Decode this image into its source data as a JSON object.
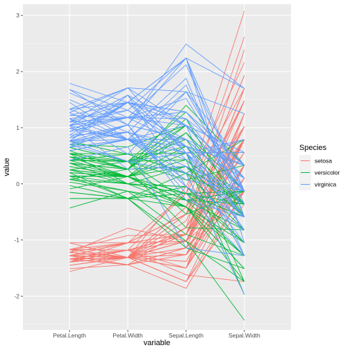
{
  "chart_data": {
    "type": "line",
    "subtype": "parallel-coordinates",
    "title": "",
    "xlabel": "variable",
    "ylabel": "value",
    "categories": [
      "Petal.Length",
      "Petal.Width",
      "Sepal.Length",
      "Sepal.Width"
    ],
    "ylim": [
      -2.6,
      3.2
    ],
    "yticks": [
      -2,
      -1,
      0,
      1,
      2,
      3
    ],
    "grid": true,
    "legend": {
      "title": "Species",
      "position": "right",
      "entries": [
        {
          "name": "setosa",
          "color": "#F8766D"
        },
        {
          "name": "versicolor",
          "color": "#00BA38"
        },
        {
          "name": "virginica",
          "color": "#619CFF"
        }
      ]
    },
    "series": [
      {
        "name": "setosa",
        "color": "#F8766D",
        "lines": [
          [
            -1.34,
            -1.31,
            -0.9,
            1.02
          ],
          [
            -1.34,
            -1.31,
            -1.14,
            -0.13
          ],
          [
            -1.39,
            -1.31,
            -1.38,
            0.33
          ],
          [
            -1.28,
            -1.31,
            -1.5,
            0.1
          ],
          [
            -1.34,
            -1.31,
            -1.02,
            1.25
          ],
          [
            -1.17,
            -1.05,
            -0.54,
            1.93
          ],
          [
            -1.34,
            -1.18,
            -1.5,
            0.79
          ],
          [
            -1.28,
            -1.31,
            -1.02,
            0.79
          ],
          [
            -1.34,
            -1.31,
            -1.74,
            -0.36
          ],
          [
            -1.28,
            -1.44,
            -1.14,
            0.1
          ],
          [
            -1.28,
            -1.31,
            -0.54,
            1.48
          ],
          [
            -1.22,
            -1.31,
            -1.26,
            0.79
          ],
          [
            -1.34,
            -1.44,
            -1.26,
            -0.13
          ],
          [
            -1.51,
            -1.44,
            -1.86,
            -0.13
          ],
          [
            -1.45,
            -1.31,
            -0.05,
            2.16
          ],
          [
            -1.28,
            -1.05,
            -0.17,
            3.08
          ],
          [
            -1.39,
            -1.05,
            -0.54,
            1.93
          ],
          [
            -1.34,
            -1.18,
            -0.9,
            1.02
          ],
          [
            -1.17,
            -1.18,
            -0.17,
            1.7
          ],
          [
            -1.28,
            -1.18,
            -0.9,
            1.7
          ],
          [
            -1.17,
            -1.31,
            -0.54,
            0.79
          ],
          [
            -1.28,
            -1.05,
            -0.9,
            1.48
          ],
          [
            -1.56,
            -1.31,
            -1.5,
            1.25
          ],
          [
            -1.17,
            -0.92,
            -0.9,
            0.56
          ],
          [
            -1.05,
            -1.31,
            -1.26,
            0.79
          ],
          [
            -1.22,
            -1.31,
            -1.02,
            -0.13
          ],
          [
            -1.22,
            -1.05,
            -1.02,
            0.79
          ],
          [
            -1.28,
            -1.31,
            -0.78,
            1.02
          ],
          [
            -1.34,
            -1.31,
            -0.78,
            0.79
          ],
          [
            -1.22,
            -1.31,
            -1.38,
            0.33
          ],
          [
            -1.22,
            -1.31,
            -1.26,
            0.1
          ],
          [
            -1.28,
            -1.05,
            -0.54,
            0.79
          ],
          [
            -1.28,
            -1.44,
            -0.78,
            2.39
          ],
          [
            -1.34,
            -1.31,
            -0.41,
            2.62
          ],
          [
            -1.28,
            -1.31,
            -1.14,
            0.1
          ],
          [
            -1.45,
            -1.31,
            -1.02,
            0.33
          ],
          [
            -1.39,
            -1.31,
            -0.41,
            1.02
          ],
          [
            -1.34,
            -1.44,
            -1.14,
            1.25
          ],
          [
            -1.39,
            -1.31,
            -1.74,
            -0.13
          ],
          [
            -1.28,
            -1.31,
            -0.9,
            0.79
          ],
          [
            -1.39,
            -1.18,
            -1.02,
            1.02
          ],
          [
            -1.39,
            -1.18,
            -1.62,
            -1.74
          ],
          [
            -1.39,
            -1.31,
            -1.74,
            0.33
          ],
          [
            -1.22,
            -0.79,
            -1.02,
            1.02
          ],
          [
            -1.05,
            -1.05,
            -0.9,
            1.7
          ],
          [
            -1.34,
            -1.18,
            -1.26,
            -0.13
          ],
          [
            -1.22,
            -1.31,
            -0.9,
            1.7
          ],
          [
            -1.34,
            -1.31,
            -1.5,
            0.33
          ],
          [
            -1.28,
            -1.31,
            -0.66,
            1.48
          ],
          [
            -1.34,
            -1.31,
            -1.02,
            0.56
          ]
        ]
      },
      {
        "name": "versicolor",
        "color": "#00BA38",
        "lines": [
          [
            0.54,
            0.26,
            1.4,
            0.33
          ],
          [
            0.42,
            0.4,
            0.67,
            0.33
          ],
          [
            0.65,
            0.4,
            1.28,
            0.1
          ],
          [
            0.14,
            0.13,
            -0.41,
            -1.74
          ],
          [
            0.48,
            0.4,
            0.79,
            -0.59
          ],
          [
            0.42,
            0.13,
            -0.17,
            -0.59
          ],
          [
            0.54,
            0.53,
            0.55,
            0.56
          ],
          [
            -0.26,
            -0.26,
            -1.14,
            -1.51
          ],
          [
            0.48,
            0.13,
            0.91,
            -0.36
          ],
          [
            0.08,
            0.26,
            -0.78,
            -0.82
          ],
          [
            -0.15,
            -0.26,
            -1.02,
            -2.43
          ],
          [
            0.25,
            0.4,
            0.07,
            -0.13
          ],
          [
            0.14,
            -0.26,
            0.19,
            -1.97
          ],
          [
            0.54,
            0.26,
            0.31,
            -0.36
          ],
          [
            -0.09,
            0.13,
            -0.29,
            -0.36
          ],
          [
            0.37,
            0.26,
            1.04,
            0.1
          ],
          [
            0.42,
            0.4,
            -0.29,
            -0.13
          ],
          [
            0.2,
            -0.26,
            -0.05,
            -0.82
          ],
          [
            0.42,
            0.4,
            0.43,
            -1.97
          ],
          [
            0.08,
            -0.13,
            -0.29,
            -1.28
          ],
          [
            0.59,
            0.79,
            0.07,
            0.33
          ],
          [
            0.14,
            0.13,
            0.31,
            -0.59
          ],
          [
            0.65,
            0.4,
            0.55,
            -1.28
          ],
          [
            0.54,
            0.0,
            0.31,
            -0.59
          ],
          [
            0.31,
            0.13,
            0.67,
            -0.36
          ],
          [
            0.37,
            0.26,
            0.91,
            -0.13
          ],
          [
            0.59,
            0.26,
            1.16,
            -0.59
          ],
          [
            0.7,
            0.66,
            1.04,
            -0.13
          ],
          [
            0.42,
            0.4,
            0.19,
            -0.36
          ],
          [
            -0.15,
            -0.26,
            -0.17,
            -1.05
          ],
          [
            0.03,
            -0.13,
            -0.41,
            -1.51
          ],
          [
            -0.03,
            -0.26,
            -0.41,
            -1.51
          ],
          [
            0.08,
            0.0,
            -0.05,
            -0.82
          ],
          [
            0.76,
            0.53,
            0.19,
            -0.82
          ],
          [
            0.42,
            0.4,
            -0.54,
            -0.13
          ],
          [
            0.42,
            0.53,
            0.19,
            0.79
          ],
          [
            0.54,
            0.4,
            1.04,
            0.1
          ],
          [
            0.37,
            0.13,
            0.55,
            -1.74
          ],
          [
            0.2,
            0.13,
            -0.29,
            -0.13
          ],
          [
            0.14,
            0.13,
            -0.41,
            -1.28
          ],
          [
            0.37,
            0.0,
            -0.41,
            -1.05
          ],
          [
            0.48,
            0.26,
            0.31,
            -0.13
          ],
          [
            0.14,
            0.0,
            -0.05,
            -1.05
          ],
          [
            -0.26,
            -0.26,
            -1.02,
            -1.74
          ],
          [
            0.25,
            0.13,
            -0.29,
            -0.82
          ],
          [
            0.25,
            0.0,
            -0.17,
            -0.13
          ],
          [
            0.25,
            0.13,
            -0.17,
            -0.36
          ],
          [
            0.31,
            0.13,
            0.43,
            -0.36
          ],
          [
            -0.43,
            -0.13,
            -0.9,
            -1.28
          ],
          [
            0.2,
            0.13,
            -0.17,
            -0.59
          ]
        ]
      },
      {
        "name": "virginica",
        "color": "#619CFF",
        "lines": [
          [
            1.27,
            1.71,
            0.55,
            0.56
          ],
          [
            0.76,
            0.92,
            -0.05,
            -0.82
          ],
          [
            1.22,
            1.18,
            1.52,
            -0.13
          ],
          [
            1.04,
            0.79,
            0.55,
            -0.36
          ],
          [
            1.16,
            1.31,
            0.79,
            -0.13
          ],
          [
            1.62,
            1.18,
            2.12,
            -0.13
          ],
          [
            0.42,
            0.66,
            -1.14,
            -1.28
          ],
          [
            1.45,
            0.79,
            1.76,
            -0.36
          ],
          [
            1.16,
            0.79,
            1.04,
            -1.28
          ],
          [
            1.33,
            1.71,
            1.64,
            1.25
          ],
          [
            0.76,
            1.05,
            0.79,
            0.33
          ],
          [
            0.87,
            0.92,
            0.67,
            -0.82
          ],
          [
            0.99,
            1.18,
            1.16,
            -0.13
          ],
          [
            0.7,
            1.05,
            -0.17,
            -1.28
          ],
          [
            0.76,
            1.58,
            -0.05,
            -0.59
          ],
          [
            0.87,
            1.45,
            0.67,
            0.33
          ],
          [
            0.99,
            0.79,
            0.79,
            -0.13
          ],
          [
            1.68,
            1.31,
            2.24,
            1.7
          ],
          [
            1.79,
            1.45,
            2.24,
            -1.05
          ],
          [
            0.7,
            0.4,
            0.19,
            -1.97
          ],
          [
            1.1,
            1.45,
            1.28,
            0.33
          ],
          [
            0.65,
            1.05,
            -0.29,
            -0.59
          ],
          [
            1.68,
            1.05,
            2.24,
            -0.59
          ],
          [
            0.65,
            0.79,
            0.55,
            -0.82
          ],
          [
            1.1,
            1.18,
            1.04,
            0.56
          ],
          [
            1.27,
            0.79,
            1.64,
            0.33
          ],
          [
            0.59,
            0.79,
            0.43,
            -0.59
          ],
          [
            0.65,
            0.79,
            0.31,
            -0.13
          ],
          [
            1.04,
            1.18,
            0.67,
            -0.59
          ],
          [
            1.16,
            0.53,
            1.64,
            -0.13
          ],
          [
            1.33,
            0.92,
            1.88,
            -0.59
          ],
          [
            1.5,
            1.05,
            2.49,
            1.7
          ],
          [
            1.04,
            1.31,
            0.67,
            -0.59
          ],
          [
            0.76,
            0.4,
            0.55,
            -0.59
          ],
          [
            1.04,
            0.26,
            0.31,
            -1.05
          ],
          [
            1.33,
            1.45,
            2.24,
            -0.13
          ],
          [
            1.04,
            1.58,
            0.55,
            0.79
          ],
          [
            0.99,
            0.79,
            0.67,
            0.1
          ],
          [
            0.59,
            0.79,
            0.19,
            -0.13
          ],
          [
            0.93,
            1.18,
            1.28,
            0.1
          ],
          [
            1.04,
            1.58,
            1.04,
            0.1
          ],
          [
            0.76,
            1.45,
            1.28,
            0.1
          ],
          [
            0.76,
            0.92,
            -0.05,
            -0.82
          ],
          [
            1.22,
            1.45,
            1.16,
            0.33
          ],
          [
            1.1,
            1.71,
            1.04,
            0.56
          ],
          [
            0.82,
            1.45,
            1.04,
            -0.13
          ],
          [
            0.7,
            0.92,
            0.55,
            -1.28
          ],
          [
            0.82,
            1.05,
            0.79,
            -0.13
          ],
          [
            0.93,
            1.45,
            0.43,
            0.79
          ],
          [
            0.76,
            0.79,
            0.07,
            -0.13
          ]
        ]
      }
    ]
  }
}
